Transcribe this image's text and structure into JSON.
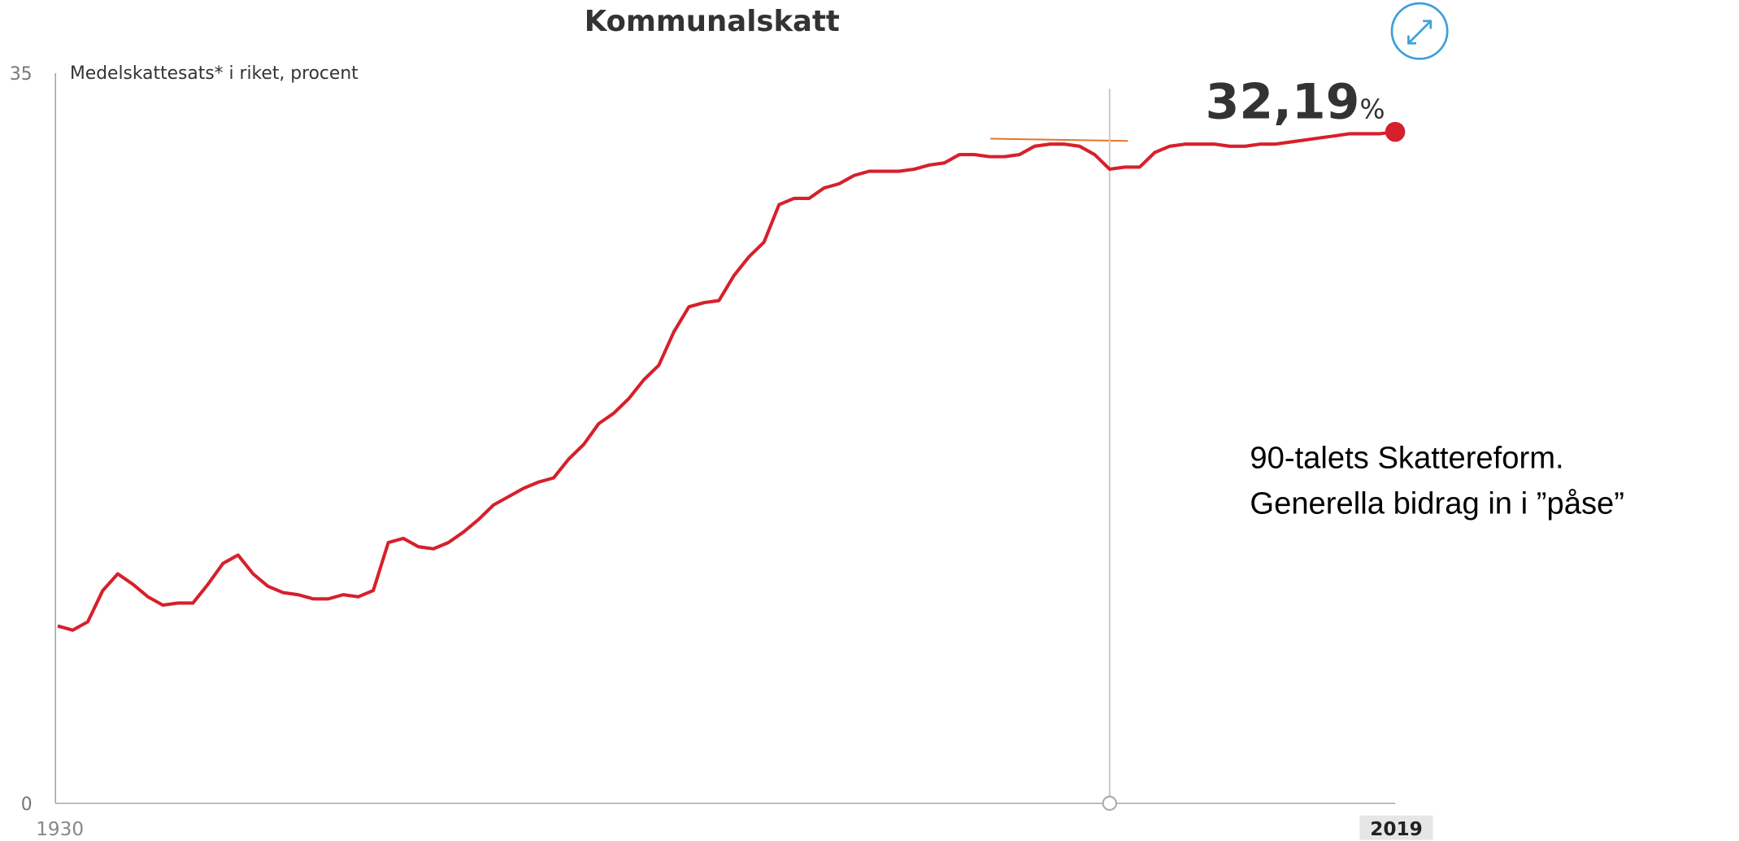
{
  "chart_data": {
    "type": "line",
    "title": "Kommunalskatt",
    "y_label": "Medelskattesats* i riket, procent",
    "x": [
      1930,
      1931,
      1932,
      1933,
      1934,
      1935,
      1936,
      1937,
      1938,
      1939,
      1940,
      1941,
      1942,
      1943,
      1944,
      1945,
      1946,
      1947,
      1948,
      1949,
      1950,
      1951,
      1952,
      1953,
      1954,
      1955,
      1956,
      1957,
      1958,
      1959,
      1960,
      1961,
      1962,
      1963,
      1964,
      1965,
      1966,
      1967,
      1968,
      1969,
      1970,
      1971,
      1972,
      1973,
      1974,
      1975,
      1976,
      1977,
      1978,
      1979,
      1980,
      1981,
      1982,
      1983,
      1984,
      1985,
      1986,
      1987,
      1988,
      1989,
      1990,
      1991,
      1992,
      1993,
      1994,
      1995,
      1996,
      1997,
      1998,
      1999,
      2000,
      2001,
      2002,
      2003,
      2004,
      2005,
      2006,
      2007,
      2008,
      2009,
      2010,
      2011,
      2012,
      2013,
      2014,
      2015,
      2016,
      2017,
      2018,
      2019
    ],
    "series": [
      {
        "name": "Kommunalskatt",
        "color": "#d6202c",
        "values": [
          8.5,
          8.3,
          8.7,
          10.2,
          11.0,
          10.5,
          9.9,
          9.5,
          9.6,
          9.6,
          10.5,
          11.5,
          11.9,
          11.0,
          10.4,
          10.1,
          10.0,
          9.8,
          9.8,
          10.0,
          9.9,
          10.2,
          12.5,
          12.7,
          12.3,
          12.2,
          12.5,
          13.0,
          13.6,
          14.3,
          14.7,
          15.1,
          15.4,
          15.6,
          16.5,
          17.2,
          18.2,
          18.7,
          19.4,
          20.3,
          21.0,
          22.6,
          23.8,
          24.0,
          24.1,
          25.3,
          26.2,
          26.9,
          28.7,
          29.0,
          29.0,
          29.5,
          29.7,
          30.1,
          30.3,
          30.3,
          30.3,
          30.4,
          30.6,
          30.7,
          31.1,
          31.1,
          31.0,
          31.0,
          31.1,
          31.5,
          31.6,
          31.6,
          31.5,
          31.1,
          30.4,
          30.5,
          30.5,
          31.2,
          31.5,
          31.6,
          31.6,
          31.6,
          31.5,
          31.5,
          31.6,
          31.6,
          31.7,
          31.8,
          31.9,
          32.0,
          32.1,
          32.1,
          32.1,
          32.19
        ],
        "value_labels": [
          null,
          null,
          null,
          null,
          null,
          null,
          null,
          null,
          null,
          null,
          null,
          null,
          null,
          null,
          null,
          null,
          null,
          null,
          null,
          null,
          null,
          null,
          null,
          null,
          null,
          null,
          null,
          null,
          null,
          null,
          null,
          null,
          null,
          null,
          null,
          null,
          null,
          null,
          null,
          null,
          null,
          null,
          null,
          null,
          null,
          null,
          null,
          null,
          null,
          null,
          null,
          null,
          null,
          null,
          null,
          null,
          null,
          null,
          null,
          null,
          null,
          null,
          null,
          null,
          null,
          null,
          null,
          null,
          null,
          null,
          null,
          null,
          null,
          null,
          null,
          null,
          null,
          null,
          null,
          null,
          null,
          null,
          null,
          null,
          null,
          null,
          null,
          null,
          null,
          "32,19"
        ]
      }
    ],
    "value_unit": "%",
    "xlim": [
      1930,
      2019
    ],
    "xticks": [
      1930,
      2019
    ],
    "ylim": [
      0,
      35
    ],
    "yticks": [
      0,
      35
    ],
    "marker_x": 2000,
    "annotation": [
      "90-talets Skattereform.",
      "Generella bidrag in i ”påse”"
    ]
  }
}
